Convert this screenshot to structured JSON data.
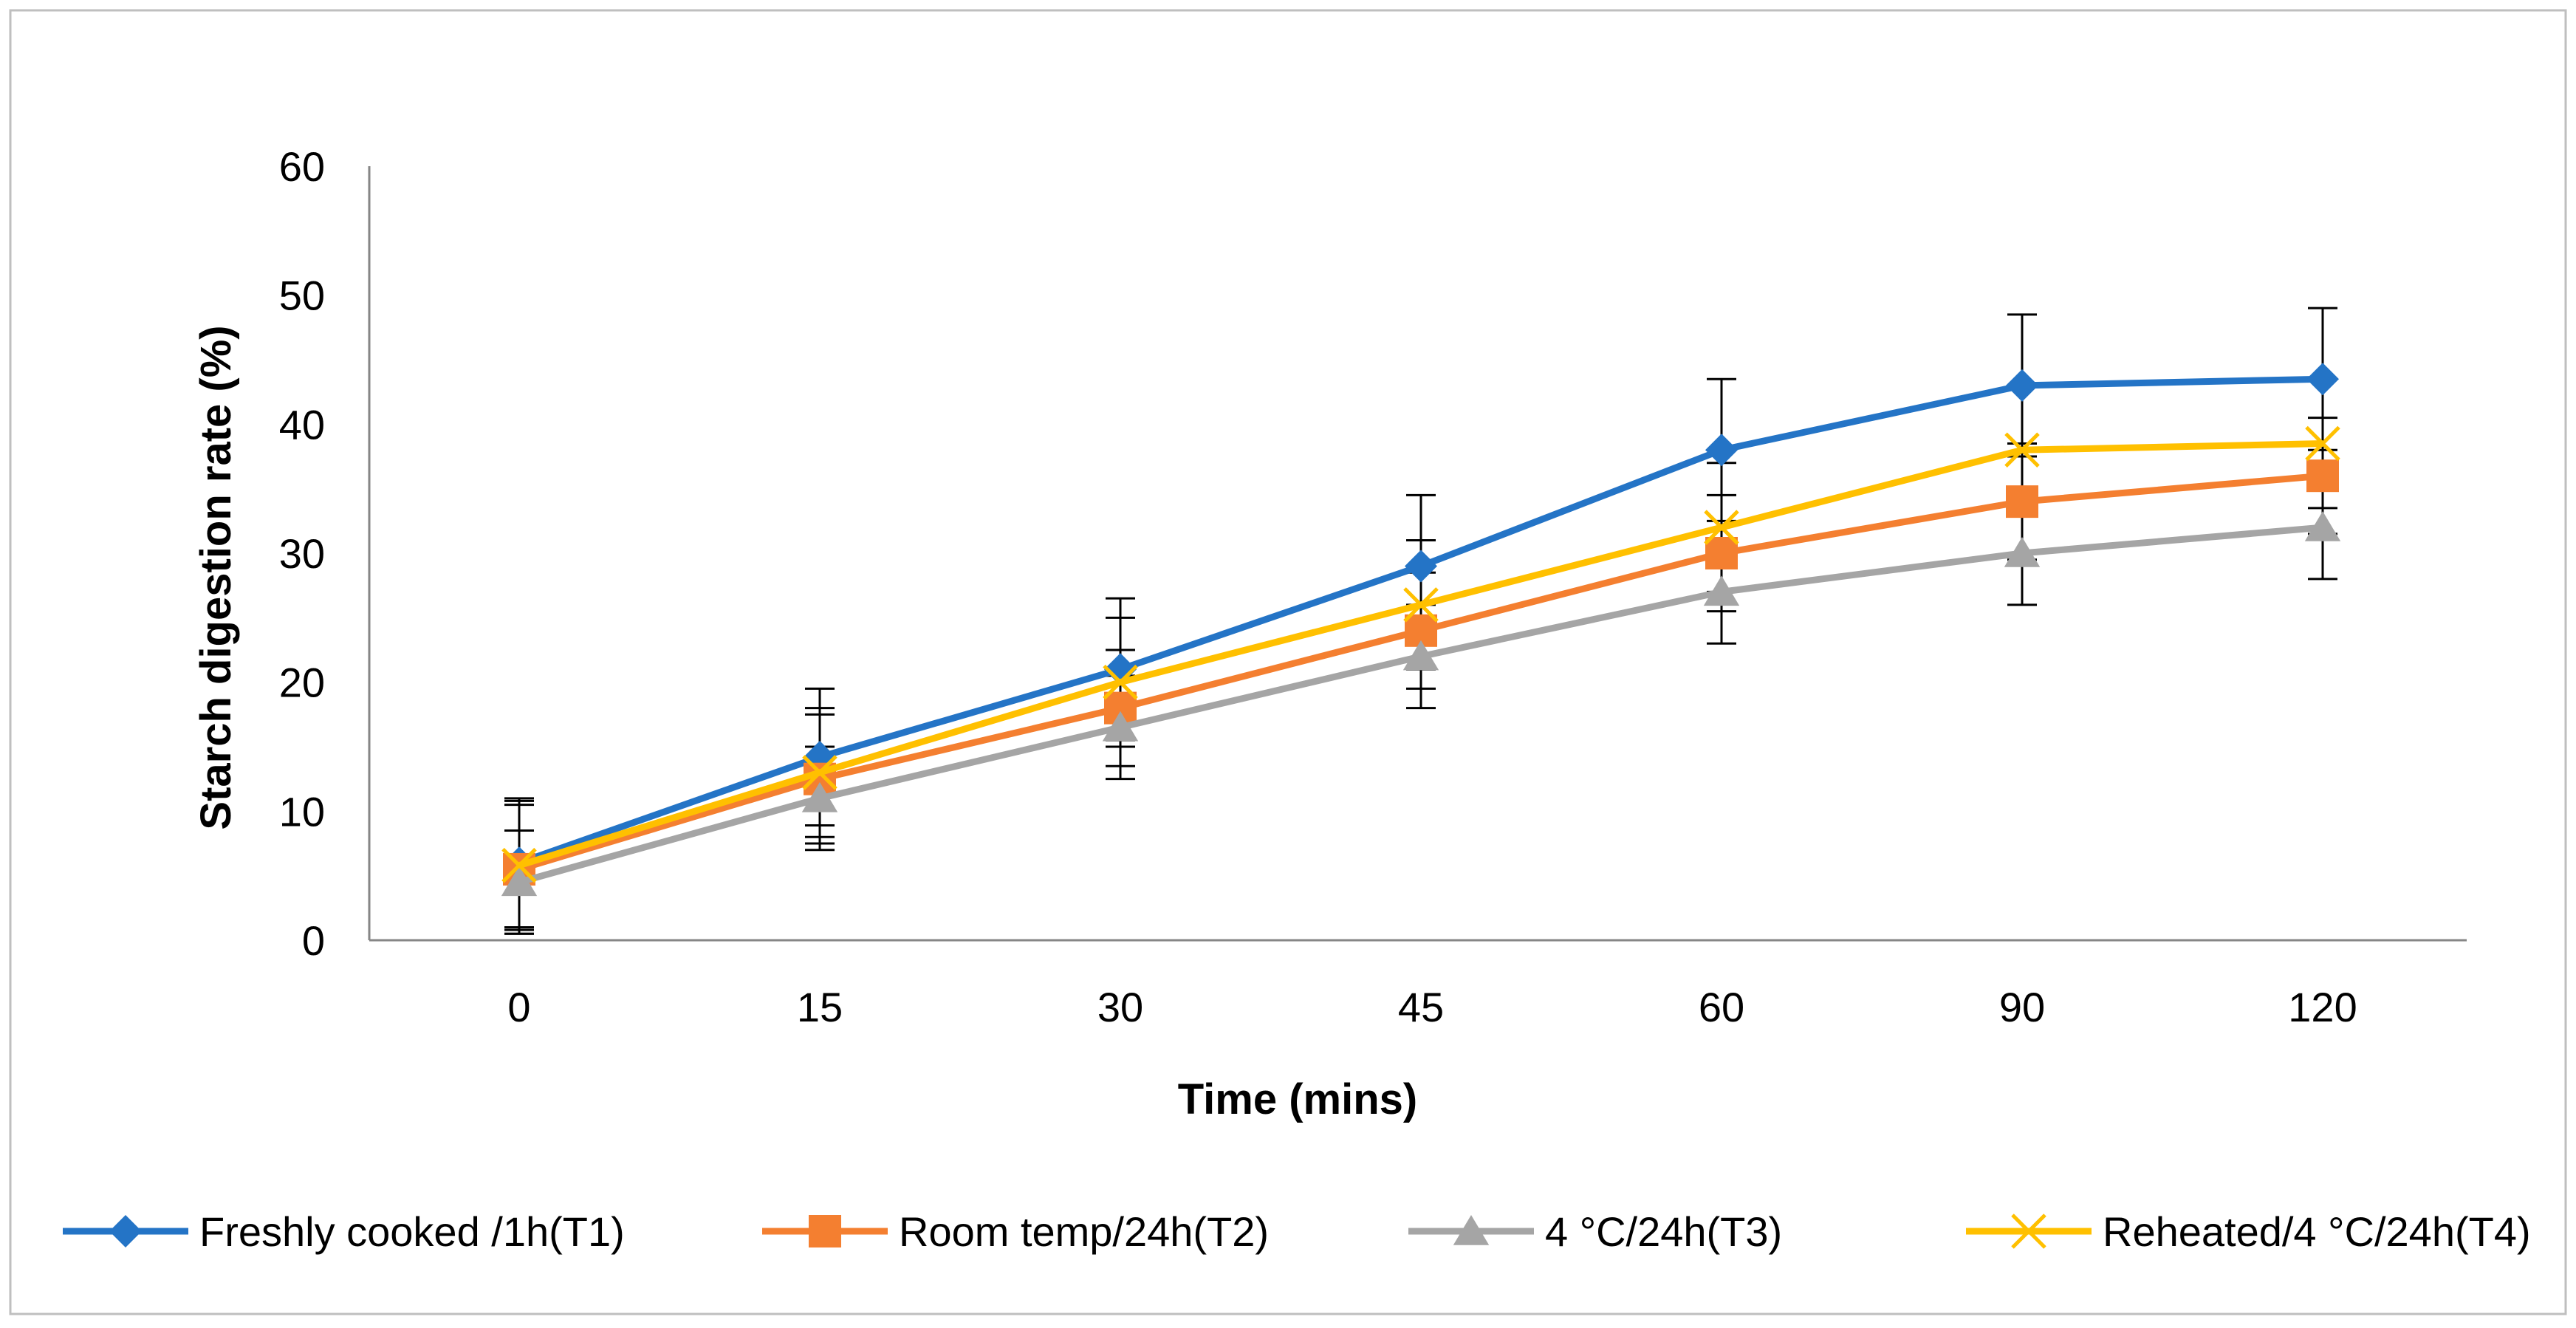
{
  "chart_data": {
    "type": "line",
    "title": "",
    "xlabel": "Time (mins)",
    "ylabel": "Starch digestion rate (%)",
    "categories": [
      "0",
      "15",
      "30",
      "45",
      "60",
      "90",
      "120"
    ],
    "ylim": [
      0,
      60
    ],
    "yticks": [
      "0",
      "10",
      "20",
      "30",
      "40",
      "50",
      "60"
    ],
    "grid": false,
    "legend_position": "bottom",
    "series": [
      {
        "name": "Freshly cooked /1h(T1)",
        "color": "#2474C6",
        "marker": "diamond",
        "values": [
          6.0,
          14.2,
          21.0,
          29.0,
          38.0,
          43.0,
          43.5
        ],
        "errors": [
          5.0,
          5.3,
          5.5,
          5.5,
          5.5,
          5.5,
          5.5
        ]
      },
      {
        "name": "Room temp/24h(T2)",
        "color": "#F47F30",
        "marker": "square",
        "values": [
          5.5,
          12.5,
          18.0,
          24.0,
          30.0,
          34.0,
          36.0
        ],
        "errors": [
          5.0,
          5.0,
          4.5,
          4.5,
          4.5,
          4.5,
          4.5
        ]
      },
      {
        "name": "4 °C/24h(T3)",
        "color": "#A5A5A5",
        "marker": "triangle",
        "values": [
          4.5,
          11.0,
          16.5,
          22.0,
          27.0,
          30.0,
          32.0
        ],
        "errors": [
          4.0,
          4.0,
          4.0,
          4.0,
          4.0,
          4.0,
          4.0
        ]
      },
      {
        "name": "Reheated/4 °C/24h(T4)",
        "color": "#FFC000",
        "marker": "x",
        "values": [
          5.8,
          13.0,
          20.0,
          26.0,
          32.0,
          38.0,
          38.5
        ],
        "errors": [
          5.0,
          5.0,
          5.0,
          5.0,
          5.0,
          5.0,
          5.0
        ]
      }
    ]
  }
}
